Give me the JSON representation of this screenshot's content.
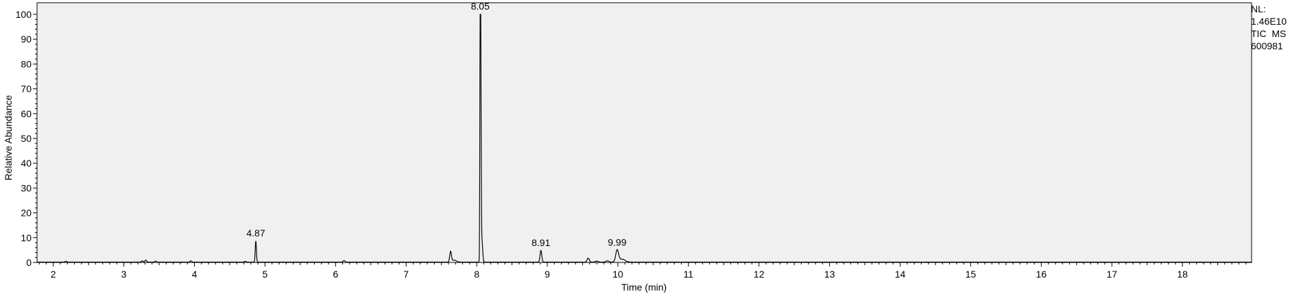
{
  "info_box": {
    "nl_label": "NL:",
    "nl_value": "1.46E10",
    "trace_line": "TIC  MS",
    "file_id": "600981"
  },
  "chart_data": {
    "type": "line",
    "title": "",
    "xlabel": "Time (min)",
    "ylabel": "Relative Abundance",
    "xlim": [
      1.77,
      18.98
    ],
    "ylim": [
      0,
      100
    ],
    "x_ticks": [
      2,
      3,
      4,
      5,
      6,
      7,
      8,
      9,
      10,
      11,
      12,
      13,
      14,
      15,
      16,
      17,
      18
    ],
    "y_ticks": [
      0,
      10,
      20,
      30,
      40,
      50,
      60,
      70,
      80,
      90,
      100
    ],
    "grid": false,
    "plot_background": "#f0f0f0",
    "line_color": "#000000",
    "peak_labels": [
      {
        "x": 4.87,
        "y": 8.5,
        "text": "4.87"
      },
      {
        "x": 8.05,
        "y": 100,
        "text": "8.05"
      },
      {
        "x": 8.91,
        "y": 4.7,
        "text": "8.91"
      },
      {
        "x": 9.99,
        "y": 4.8,
        "text": "9.99"
      }
    ],
    "peaks": [
      {
        "rt": 2.18,
        "height": 0.3,
        "width": 0.012
      },
      {
        "rt": 3.26,
        "height": 0.5,
        "width": 0.012
      },
      {
        "rt": 3.31,
        "height": 0.8,
        "width": 0.012
      },
      {
        "rt": 3.45,
        "height": 0.4,
        "width": 0.012
      },
      {
        "rt": 3.95,
        "height": 0.5,
        "width": 0.012
      },
      {
        "rt": 4.72,
        "height": 0.3,
        "width": 0.012
      },
      {
        "rt": 4.87,
        "height": 8.5,
        "width": 0.008
      },
      {
        "rt": 6.12,
        "height": 0.6,
        "width": 0.015
      },
      {
        "rt": 7.63,
        "height": 4.2,
        "width": 0.012
      },
      {
        "rt": 7.68,
        "height": 0.8,
        "width": 0.03
      },
      {
        "rt": 8.05,
        "height": 100,
        "width": 0.005
      },
      {
        "rt": 8.058,
        "height": 68,
        "width": 0.006
      },
      {
        "rt": 8.075,
        "height": 8.5,
        "width": 0.01
      },
      {
        "rt": 8.91,
        "height": 4.7,
        "width": 0.012
      },
      {
        "rt": 9.58,
        "height": 1.6,
        "width": 0.015
      },
      {
        "rt": 9.7,
        "height": 0.4,
        "width": 0.02
      },
      {
        "rt": 9.85,
        "height": 0.5,
        "width": 0.02
      },
      {
        "rt": 9.99,
        "height": 4.8,
        "width": 0.02
      },
      {
        "rt": 10.06,
        "height": 1.2,
        "width": 0.04
      }
    ]
  }
}
